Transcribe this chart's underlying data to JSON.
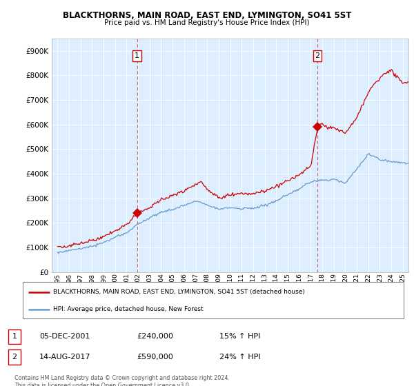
{
  "title": "BLACKTHORNS, MAIN ROAD, EAST END, LYMINGTON, SO41 5ST",
  "subtitle": "Price paid vs. HM Land Registry's House Price Index (HPI)",
  "red_label": "BLACKTHORNS, MAIN ROAD, EAST END, LYMINGTON, SO41 5ST (detached house)",
  "blue_label": "HPI: Average price, detached house, New Forest",
  "annotation1": {
    "num": "1",
    "date": "05-DEC-2001",
    "price": "£240,000",
    "pct": "15% ↑ HPI"
  },
  "annotation2": {
    "num": "2",
    "date": "14-AUG-2017",
    "price": "£590,000",
    "pct": "24% ↑ HPI"
  },
  "footer": "Contains HM Land Registry data © Crown copyright and database right 2024.\nThis data is licensed under the Open Government Licence v3.0.",
  "ylim": [
    0,
    950000
  ],
  "yticks": [
    0,
    100000,
    200000,
    300000,
    400000,
    500000,
    600000,
    700000,
    800000,
    900000
  ],
  "ytick_labels": [
    "£0",
    "£100K",
    "£200K",
    "£300K",
    "£400K",
    "£500K",
    "£600K",
    "£700K",
    "£800K",
    "£900K"
  ],
  "red_color": "#cc0000",
  "blue_color": "#6699cc",
  "anno_line_color": "#cc0000",
  "plot_bg_color": "#ddeeff",
  "background_color": "#ffffff",
  "grid_color": "#ffffff",
  "sale1_year": 2001.917,
  "sale1_val": 240000,
  "sale2_year": 2017.583,
  "sale2_val": 590000
}
